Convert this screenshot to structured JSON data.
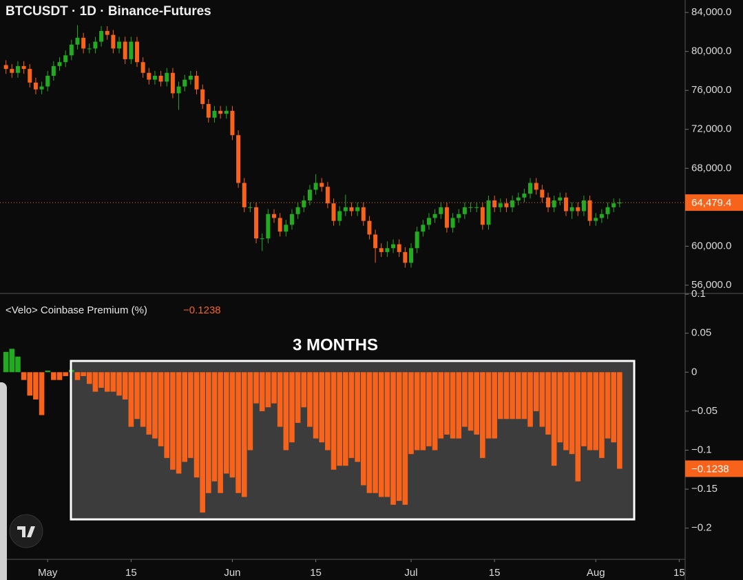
{
  "chart_data": [
    {
      "type": "candlestick",
      "title": "BTCUSDT · 1D · Binance-Futures",
      "x": [
        "04-24",
        "04-25",
        "04-26",
        "04-27",
        "04-28",
        "04-29",
        "04-30",
        "05-01",
        "05-02",
        "05-03",
        "05-04",
        "05-05",
        "05-06",
        "05-07",
        "05-08",
        "05-09",
        "05-10",
        "05-11",
        "05-12",
        "05-13",
        "05-14",
        "05-15",
        "05-16",
        "05-17",
        "05-18",
        "05-19",
        "05-20",
        "05-21",
        "05-22",
        "05-23",
        "05-24",
        "05-25",
        "05-26",
        "05-27",
        "05-28",
        "05-29",
        "05-30",
        "05-31",
        "06-01",
        "06-02",
        "06-03",
        "06-04",
        "06-05",
        "06-06",
        "06-07",
        "06-08",
        "06-09",
        "06-10",
        "06-11",
        "06-12",
        "06-13",
        "06-14",
        "06-15",
        "06-16",
        "06-17",
        "06-18",
        "06-19",
        "06-20",
        "06-21",
        "06-22",
        "06-23",
        "06-24",
        "06-25",
        "06-26",
        "06-27",
        "06-28",
        "06-29",
        "06-30",
        "07-01",
        "07-02",
        "07-03",
        "07-04",
        "07-05",
        "07-06",
        "07-07",
        "07-08",
        "07-09",
        "07-10",
        "07-11",
        "07-12",
        "07-13",
        "07-14",
        "07-15",
        "07-16",
        "07-17",
        "07-18",
        "07-19",
        "07-20",
        "07-21",
        "07-22",
        "07-23",
        "07-24",
        "07-25",
        "07-26",
        "07-27",
        "07-28",
        "07-29",
        "07-30",
        "07-31",
        "08-01",
        "08-02",
        "08-03",
        "08-04",
        "08-05"
      ],
      "open": [
        78600,
        78200,
        77800,
        78500,
        78200,
        76800,
        76100,
        76400,
        77500,
        78500,
        78900,
        79600,
        80700,
        81400,
        80300,
        80300,
        81000,
        82100,
        81700,
        80300,
        81000,
        79200,
        81000,
        78900,
        77800,
        77100,
        77500,
        76900,
        77800,
        75700,
        76400,
        77100,
        77500,
        76100,
        74600,
        73200,
        73900,
        73600,
        73900,
        71400,
        66500,
        64000,
        64000,
        60800,
        60800,
        63300,
        62900,
        61500,
        62200,
        63300,
        64000,
        64700,
        65800,
        66500,
        66100,
        64400,
        62600,
        63600,
        64000,
        63600,
        64000,
        62600,
        61200,
        59800,
        59400,
        59800,
        60200,
        59400,
        58300,
        59800,
        61500,
        62200,
        62900,
        63300,
        64000,
        61900,
        62900,
        63300,
        64000,
        64000,
        64000,
        62200,
        64700,
        64000,
        64400,
        64000,
        64700,
        65000,
        65400,
        66500,
        65800,
        65000,
        64000,
        64700,
        65000,
        63600,
        64000,
        63600,
        64700,
        62600,
        62900,
        63300,
        64000,
        64400
      ],
      "high": [
        79100,
        78700,
        79000,
        79000,
        78700,
        77300,
        76900,
        78000,
        79000,
        79400,
        80100,
        81200,
        82700,
        81900,
        80800,
        81500,
        82600,
        82600,
        82200,
        81500,
        81500,
        81500,
        81500,
        79400,
        78300,
        78000,
        78000,
        78300,
        78300,
        76900,
        77600,
        78000,
        78000,
        76600,
        75100,
        74400,
        74400,
        74400,
        74400,
        71900,
        67000,
        64500,
        64500,
        61300,
        63800,
        63800,
        63400,
        62700,
        63800,
        64500,
        65200,
        66300,
        67400,
        67000,
        66600,
        64900,
        64100,
        65300,
        64500,
        64500,
        64500,
        63100,
        61700,
        60300,
        60500,
        60700,
        60700,
        59900,
        60300,
        62000,
        62700,
        63400,
        63800,
        64500,
        64500,
        63400,
        63800,
        64500,
        64500,
        64500,
        64500,
        65200,
        65200,
        64900,
        64900,
        65200,
        65500,
        65900,
        67000,
        67000,
        66300,
        65500,
        65200,
        65500,
        65500,
        64500,
        64500,
        65200,
        65200,
        63400,
        63800,
        64500,
        64900,
        64900
      ],
      "low": [
        77700,
        77300,
        77300,
        77700,
        76300,
        75600,
        75600,
        75900,
        77000,
        78000,
        78400,
        79100,
        80200,
        79800,
        79800,
        79800,
        80500,
        81200,
        79800,
        79800,
        78700,
        78700,
        78400,
        77300,
        76600,
        76600,
        76400,
        76400,
        75200,
        74000,
        75900,
        76600,
        75600,
        74100,
        72700,
        72700,
        73100,
        73100,
        70900,
        66000,
        63500,
        63500,
        60300,
        59500,
        60300,
        62400,
        61000,
        61000,
        61700,
        62800,
        63500,
        64200,
        65300,
        65600,
        63900,
        62100,
        62100,
        63100,
        63100,
        63100,
        62100,
        60700,
        58300,
        58900,
        58900,
        59300,
        58900,
        57800,
        57800,
        59300,
        61000,
        61700,
        62400,
        62800,
        61400,
        61400,
        62400,
        62800,
        63500,
        63500,
        61700,
        61700,
        63500,
        63500,
        63500,
        63500,
        64200,
        64500,
        64900,
        65300,
        64500,
        63500,
        63500,
        64200,
        63100,
        62800,
        63100,
        63100,
        62100,
        62100,
        62400,
        62800,
        63500,
        64000
      ],
      "close": [
        78200,
        77800,
        78500,
        78200,
        76800,
        76100,
        76400,
        77500,
        78500,
        78900,
        79600,
        80700,
        81400,
        80300,
        80300,
        81000,
        82100,
        81700,
        80300,
        81000,
        79200,
        81000,
        78900,
        77800,
        77100,
        77500,
        76900,
        77800,
        75700,
        76400,
        77100,
        77500,
        76100,
        74600,
        73200,
        73900,
        73600,
        73900,
        71400,
        66500,
        64000,
        64000,
        60800,
        60800,
        63300,
        62900,
        61500,
        62200,
        63300,
        64000,
        64700,
        65800,
        66500,
        66100,
        64400,
        62600,
        63600,
        64000,
        63600,
        64000,
        62600,
        61200,
        59800,
        59400,
        59800,
        60200,
        59400,
        58300,
        59800,
        61500,
        62200,
        62900,
        63300,
        64000,
        61900,
        62900,
        63300,
        64000,
        64000,
        64000,
        62200,
        64700,
        64000,
        64400,
        64000,
        64700,
        65000,
        65400,
        66500,
        65800,
        65000,
        64000,
        64700,
        65000,
        63600,
        64000,
        63600,
        64700,
        62600,
        62900,
        63300,
        64000,
        64400,
        64479.4
      ],
      "up_color": "#22ab20",
      "down_color": "#f7631b",
      "xlim": [
        "04-23",
        "08-16"
      ],
      "ylim": [
        55150,
        85280
      ],
      "yticks": [
        {
          "value": 56000,
          "label": "56,000.0"
        },
        {
          "value": 60000,
          "label": "60,000.0"
        },
        {
          "value": 68000,
          "label": "68,000.0"
        },
        {
          "value": 72000,
          "label": "72,000.0"
        },
        {
          "value": 76000,
          "label": "76,000.0"
        },
        {
          "value": 80000,
          "label": "80,000.0"
        },
        {
          "value": 84000,
          "label": "84,000.0"
        }
      ],
      "last_value_label": "64,479.4"
    },
    {
      "type": "bar",
      "title": "<Velo> Coinbase Premium (%)",
      "value_label": "−0.1238",
      "annotation": "3 MONTHS",
      "x": [
        "04-24",
        "04-25",
        "04-26",
        "04-27",
        "04-28",
        "04-29",
        "04-30",
        "05-01",
        "05-02",
        "05-03",
        "05-04",
        "05-05",
        "05-06",
        "05-07",
        "05-08",
        "05-09",
        "05-10",
        "05-11",
        "05-12",
        "05-13",
        "05-14",
        "05-15",
        "05-16",
        "05-17",
        "05-18",
        "05-19",
        "05-20",
        "05-21",
        "05-22",
        "05-23",
        "05-24",
        "05-25",
        "05-26",
        "05-27",
        "05-28",
        "05-29",
        "05-30",
        "05-31",
        "06-01",
        "06-02",
        "06-03",
        "06-04",
        "06-05",
        "06-06",
        "06-07",
        "06-08",
        "06-09",
        "06-10",
        "06-11",
        "06-12",
        "06-13",
        "06-14",
        "06-15",
        "06-16",
        "06-17",
        "06-18",
        "06-19",
        "06-20",
        "06-21",
        "06-22",
        "06-23",
        "06-24",
        "06-25",
        "06-26",
        "06-27",
        "06-28",
        "06-29",
        "06-30",
        "07-01",
        "07-02",
        "07-03",
        "07-04",
        "07-05",
        "07-06",
        "07-07",
        "07-08",
        "07-09",
        "07-10",
        "07-11",
        "07-12",
        "07-13",
        "07-14",
        "07-15",
        "07-16",
        "07-17",
        "07-18",
        "07-19",
        "07-20",
        "07-21",
        "07-22",
        "07-23",
        "07-24",
        "07-25",
        "07-26",
        "07-27",
        "07-28",
        "07-29",
        "07-30",
        "07-31",
        "08-01",
        "08-02",
        "08-03",
        "08-04",
        "08-05"
      ],
      "values": [
        0.026,
        0.03,
        0.02,
        -0.01,
        -0.03,
        -0.035,
        -0.055,
        0.002,
        -0.01,
        -0.01,
        -0.005,
        0.003,
        -0.01,
        -0.005,
        -0.015,
        -0.025,
        -0.02,
        -0.025,
        -0.025,
        -0.03,
        -0.035,
        -0.07,
        -0.06,
        -0.07,
        -0.08,
        -0.085,
        -0.095,
        -0.11,
        -0.125,
        -0.13,
        -0.115,
        -0.11,
        -0.135,
        -0.18,
        -0.155,
        -0.14,
        -0.155,
        -0.13,
        -0.135,
        -0.155,
        -0.16,
        -0.1,
        -0.04,
        -0.05,
        -0.045,
        -0.04,
        -0.07,
        -0.1,
        -0.09,
        -0.065,
        -0.045,
        -0.07,
        -0.085,
        -0.09,
        -0.1,
        -0.125,
        -0.12,
        -0.12,
        -0.11,
        -0.115,
        -0.145,
        -0.155,
        -0.155,
        -0.16,
        -0.16,
        -0.17,
        -0.165,
        -0.17,
        -0.105,
        -0.1,
        -0.1,
        -0.095,
        -0.1,
        -0.085,
        -0.08,
        -0.085,
        -0.085,
        -0.07,
        -0.075,
        -0.08,
        -0.11,
        -0.085,
        -0.085,
        -0.06,
        -0.06,
        -0.06,
        -0.06,
        -0.06,
        -0.07,
        -0.05,
        -0.07,
        -0.08,
        -0.12,
        -0.09,
        -0.1,
        -0.105,
        -0.14,
        -0.095,
        -0.1,
        -0.1,
        -0.11,
        -0.085,
        -0.09,
        -0.1238
      ],
      "up_color": "#22ab20",
      "down_color": "#f7631b",
      "xlim": [
        "04-23",
        "08-16"
      ],
      "ylim": [
        -0.24,
        0.101
      ],
      "yticks": [
        {
          "value": -0.2,
          "label": "−0.2"
        },
        {
          "value": -0.15,
          "label": "−0.15"
        },
        {
          "value": -0.1,
          "label": "−0.1"
        },
        {
          "value": -0.05,
          "label": "−0.05"
        },
        0,
        0.05,
        0.1
      ],
      "xticks": [
        {
          "value": "05-01",
          "label": "May"
        },
        {
          "value": "05-15",
          "label": "15"
        },
        {
          "value": "06-01",
          "label": "Jun"
        },
        {
          "value": "06-15",
          "label": "15"
        },
        {
          "value": "07-01",
          "label": "Jul"
        },
        {
          "value": "07-15",
          "label": "15"
        },
        {
          "value": "08-01",
          "label": "Aug"
        },
        {
          "value": "08-15",
          "label": "15"
        }
      ]
    }
  ]
}
